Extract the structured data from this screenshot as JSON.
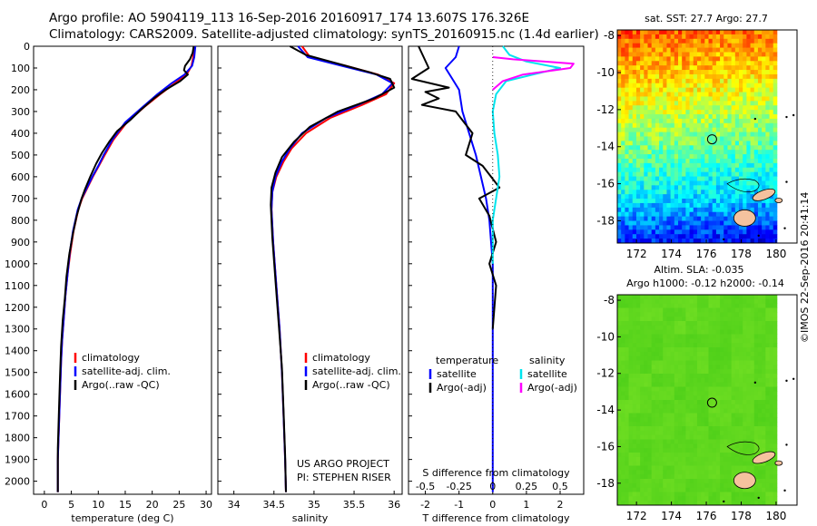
{
  "header": {
    "line1": "Argo profile: AO 5904119_113 16-Sep-2016 20160917_174 13.607S 176.326E",
    "line2": "Climatology: CARS2009. Satellite-adjusted climatology: synTS_20160915.nc (1.4d earlier)"
  },
  "side_label": "©IMOS 22-Sep-2016 20:41:14",
  "credit": {
    "line1": "US ARGO PROJECT",
    "line2": "PI: STEPHEN RISER"
  },
  "colors": {
    "climatology": "#ff0000",
    "satellite": "#0000ff",
    "argo": "#000000",
    "sal_satellite": "#00e5ee",
    "sal_argo": "#ff00ff",
    "land": "#f5c29e"
  },
  "chart_data": [
    {
      "type": "line",
      "xlabel": "temperature (deg C)",
      "ylabel": "",
      "xlim": [
        -2,
        31
      ],
      "ylim": [
        2060,
        0
      ],
      "xticks": [
        0,
        5,
        10,
        15,
        20,
        25,
        30
      ],
      "yticks": [
        0,
        100,
        200,
        300,
        400,
        500,
        600,
        700,
        800,
        900,
        1000,
        1100,
        1200,
        1300,
        1400,
        1500,
        1600,
        1700,
        1800,
        1900,
        2000
      ],
      "legend": [
        "climatology",
        "satellite-adj. clim.",
        "Argo(..raw -QC)"
      ],
      "legend_position": "lower-left",
      "series": [
        {
          "name": "climatology",
          "color": "#ff0000",
          "x": [
            27.8,
            27.6,
            27.3,
            26.4,
            24.2,
            21.5,
            18.5,
            15.3,
            12.8,
            11.2,
            10.1,
            9.0,
            8.0,
            7.0,
            6.3,
            5.4,
            4.8,
            4.3,
            3.9,
            3.6,
            3.3,
            3.1,
            2.9,
            2.7,
            2.5,
            2.5
          ],
          "y": [
            0,
            50,
            90,
            130,
            170,
            220,
            280,
            350,
            430,
            500,
            550,
            600,
            650,
            700,
            750,
            850,
            950,
            1050,
            1150,
            1250,
            1350,
            1450,
            1600,
            1750,
            1900,
            2050
          ]
        },
        {
          "name": "satellite-adj. clim.",
          "color": "#0000ff",
          "x": [
            28.0,
            27.8,
            27.4,
            26.0,
            23.6,
            21.0,
            18.2,
            15.0,
            12.6,
            11.0,
            10.0,
            8.9,
            7.9,
            6.9,
            6.2,
            5.3,
            4.7,
            4.3,
            3.9,
            3.6,
            3.3,
            3.1,
            2.9,
            2.7,
            2.5,
            2.5
          ],
          "y": [
            0,
            50,
            90,
            130,
            170,
            220,
            280,
            350,
            430,
            500,
            550,
            600,
            650,
            700,
            750,
            850,
            950,
            1050,
            1150,
            1250,
            1350,
            1450,
            1600,
            1750,
            1900,
            2050
          ]
        },
        {
          "name": "Argo(..raw -QC)",
          "color": "#000000",
          "x": [
            27.7,
            27.5,
            27.0,
            26.1,
            25.9,
            26.6,
            25.2,
            22.5,
            20.3,
            18.0,
            15.9,
            13.5,
            12.0,
            10.7,
            9.6,
            8.5,
            7.5,
            6.9,
            6.0,
            5.3,
            4.6,
            4.1,
            3.8,
            3.4,
            3.1,
            2.9,
            2.7,
            2.5,
            2.5
          ],
          "y": [
            0,
            30,
            60,
            90,
            110,
            130,
            160,
            200,
            240,
            290,
            340,
            390,
            440,
            490,
            540,
            600,
            660,
            700,
            780,
            860,
            960,
            1060,
            1160,
            1260,
            1380,
            1520,
            1680,
            1850,
            2050
          ]
        }
      ]
    },
    {
      "type": "line",
      "xlabel": "salinity",
      "xlim": [
        33.8,
        36.1
      ],
      "ylim": [
        2060,
        0
      ],
      "xticks": [
        34,
        34.5,
        35,
        35.5,
        36
      ],
      "legend": [
        "climatology",
        "satellite-adj. clim.",
        "Argo(..raw -QC)"
      ],
      "legend_position": "lower-right",
      "series": [
        {
          "name": "climatology",
          "color": "#ff0000",
          "x": [
            34.85,
            34.95,
            35.4,
            35.8,
            36.0,
            35.9,
            35.6,
            35.2,
            34.9,
            34.72,
            34.62,
            34.53,
            34.48,
            34.47,
            34.49,
            34.53,
            34.57,
            34.6,
            34.62,
            34.64,
            34.65
          ],
          "y": [
            0,
            50,
            90,
            130,
            170,
            220,
            270,
            330,
            400,
            470,
            530,
            600,
            670,
            750,
            900,
            1100,
            1300,
            1500,
            1700,
            1900,
            2050
          ]
        },
        {
          "name": "satellite-adj. clim.",
          "color": "#0000ff",
          "x": [
            34.8,
            34.92,
            35.35,
            35.78,
            35.98,
            35.85,
            35.55,
            35.15,
            34.85,
            34.7,
            34.6,
            34.52,
            34.48,
            34.47,
            34.49,
            34.53,
            34.57,
            34.6,
            34.62,
            34.64,
            34.65
          ],
          "y": [
            0,
            50,
            90,
            130,
            170,
            220,
            270,
            330,
            400,
            470,
            530,
            600,
            670,
            750,
            900,
            1100,
            1300,
            1500,
            1700,
            1900,
            2050
          ]
        },
        {
          "name": "Argo(..raw -QC)",
          "color": "#000000",
          "x": [
            34.7,
            34.9,
            35.3,
            35.7,
            35.95,
            36.0,
            35.75,
            35.3,
            34.95,
            34.75,
            34.6,
            34.52,
            34.47,
            34.46,
            34.48,
            34.52,
            34.56,
            34.6,
            34.62,
            34.64,
            34.65
          ],
          "y": [
            0,
            40,
            80,
            120,
            150,
            190,
            240,
            300,
            370,
            440,
            510,
            580,
            650,
            730,
            880,
            1080,
            1280,
            1480,
            1680,
            1880,
            2050
          ]
        }
      ]
    },
    {
      "type": "line",
      "xlabel": "T difference from climatology",
      "top_label": "S difference from climatology",
      "xlim": [
        -2.5,
        2.7
      ],
      "ylim": [
        2060,
        0
      ],
      "xticks": [
        -2,
        -1,
        0,
        1,
        2
      ],
      "top_ticks": [
        -0.5,
        -0.25,
        0,
        0.25,
        0.5
      ],
      "top_tick_labels": [
        "-0.5",
        "-0.25",
        "0",
        "0.25",
        "0.5"
      ],
      "legend_temperature": [
        "temperature",
        "satellite",
        "Argo(-adj)"
      ],
      "legend_salinity": [
        "salinity",
        "satellite",
        "Argo(-adj)"
      ],
      "legend_position": "lower",
      "series": [
        {
          "name": "satellite",
          "color": "#0000ff",
          "x": [
            -1.0,
            -1.1,
            -1.4,
            -1.2,
            -1.0,
            -0.9,
            -0.7,
            -0.5,
            -0.35,
            -0.2,
            -0.1,
            0.0,
            0.0,
            0.0,
            0.0
          ],
          "y": [
            0,
            50,
            100,
            150,
            200,
            300,
            400,
            500,
            600,
            700,
            800,
            1000,
            1400,
            1800,
            2050
          ]
        },
        {
          "name": "Argo(-adj)",
          "color": "#000000",
          "x": [
            -2.2,
            -1.9,
            -2.4,
            -1.3,
            -2.0,
            -1.6,
            -2.1,
            -1.1,
            -0.6,
            -0.8,
            -0.3,
            0.2,
            -0.4,
            -0.1,
            0.1,
            -0.1,
            0.1,
            0.0
          ],
          "y": [
            0,
            100,
            150,
            190,
            210,
            240,
            270,
            300,
            400,
            500,
            550,
            650,
            700,
            780,
            900,
            1000,
            1100,
            1300
          ]
        },
        {
          "name": "S satellite",
          "color": "#00e5ee",
          "x": [
            0.3,
            0.5,
            1.0,
            2.0,
            1.2,
            0.4,
            0.1,
            0.0,
            0.05,
            0.15,
            0.2,
            0.1,
            0.0,
            0.0
          ],
          "y": [
            0,
            40,
            70,
            100,
            130,
            160,
            220,
            300,
            400,
            500,
            600,
            700,
            800,
            1000
          ]
        },
        {
          "name": "S Argo(-adj)",
          "color": "#ff00ff",
          "x": [
            0.0,
            0.6,
            1.5,
            2.4,
            2.3,
            0.9,
            0.3,
            0.0
          ],
          "y": [
            50,
            60,
            70,
            80,
            100,
            130,
            160,
            200
          ]
        }
      ]
    },
    {
      "type": "heatmap",
      "title": "sat. SST: 27.7  Argo: 27.7",
      "xlim": [
        170.9,
        181.2
      ],
      "ylim": [
        -19.2,
        -7.7
      ],
      "xticks": [
        172,
        174,
        176,
        178,
        180
      ],
      "yticks": [
        -8,
        -10,
        -12,
        -14,
        -16,
        -18
      ],
      "colormap": "jet",
      "argo_marker": [
        176.33,
        -13.6
      ]
    },
    {
      "type": "heatmap",
      "title": "Altim. SLA: -0.035",
      "subtitle": "Argo h1000: -0.12 h2000: -0.14",
      "xlim": [
        170.9,
        181.2
      ],
      "ylim": [
        -19.2,
        -7.7
      ],
      "xticks": [
        172,
        174,
        176,
        178,
        180
      ],
      "yticks": [
        -8,
        -10,
        -12,
        -14,
        -16,
        -18
      ],
      "colormap": "green",
      "argo_marker": [
        176.33,
        -13.6
      ]
    }
  ]
}
